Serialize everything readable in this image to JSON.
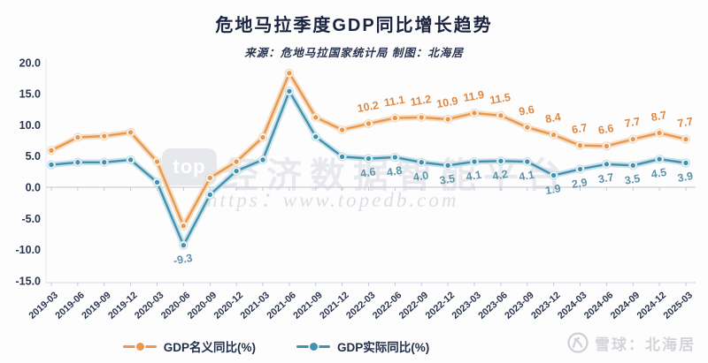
{
  "header": {
    "title": "危地马拉季度GDP同比增长趋势",
    "subtitle": "来源：危地马拉国家统计局 制图：北海居"
  },
  "watermark": {
    "badge": "top",
    "text": "经济数据智能平台",
    "url": "https：www.topedb.com"
  },
  "footer": {
    "brand": "雪球：北海居"
  },
  "colors": {
    "axis_text": "#2c3650",
    "zero_line": "#c9cfd9",
    "bottom_line": "#d9dde3",
    "left_line": "#e3e6eb",
    "tick": "#c2c9d3"
  },
  "chart_data": {
    "type": "line",
    "title": "危地马拉季度GDP同比增长趋势",
    "xlabel": "",
    "ylabel": "",
    "ylim": [
      -15,
      20
    ],
    "grid": "zero-line only",
    "legend_position": "bottom-center",
    "yticks": [
      "20.0",
      "15.0",
      "10.0",
      "5.0",
      "0.0",
      "-5.0",
      "-10.0",
      "-15.0"
    ],
    "categories": [
      "2019-03",
      "2019-06",
      "2019-09",
      "2019-12",
      "2020-03",
      "2020-06",
      "2020-09",
      "2020-12",
      "2021-03",
      "2021-06",
      "2021-09",
      "2021-12",
      "2022-03",
      "2022-06",
      "2022-09",
      "2022-12",
      "2023-03",
      "2023-06",
      "2023-09",
      "2023-12",
      "2024-03",
      "2024-06",
      "2024-09",
      "2024-12",
      "2025-03"
    ],
    "series": [
      {
        "name": "GDP名义同比(%)",
        "color": "#e8994f",
        "halo": "#f4dabd",
        "label_color": "#e08840",
        "label_dy": -15,
        "values": [
          5.9,
          8.0,
          8.2,
          8.8,
          4.1,
          -6.2,
          1.5,
          4.1,
          8.0,
          18.3,
          11.2,
          9.2,
          10.2,
          11.1,
          11.2,
          10.9,
          11.9,
          11.5,
          9.6,
          8.4,
          6.7,
          6.6,
          7.7,
          8.7,
          7.7
        ],
        "labels": [
          null,
          null,
          null,
          null,
          null,
          null,
          null,
          null,
          null,
          null,
          null,
          null,
          "10.2",
          "11.1",
          "11.2",
          "10.9",
          "11.9",
          "11.5",
          "9.6",
          "8.4",
          "6.7",
          "6.6",
          "7.7",
          "8.7",
          "7.7"
        ]
      },
      {
        "name": "GDP实际同比(%)",
        "color": "#4292ae",
        "halo": "#c6dfe9",
        "label_color": "#5e93a8",
        "label_dy": 20,
        "values": [
          3.6,
          4.0,
          4.0,
          4.4,
          0.8,
          -9.3,
          -1.2,
          2.6,
          4.4,
          15.4,
          8.1,
          4.9,
          4.6,
          4.8,
          4.0,
          3.5,
          4.1,
          4.2,
          4.1,
          1.9,
          2.9,
          3.7,
          3.5,
          4.5,
          3.9
        ],
        "labels": [
          null,
          null,
          null,
          null,
          null,
          "-9.3",
          null,
          null,
          null,
          null,
          null,
          null,
          "4.6",
          "4.8",
          "4.0",
          "3.5",
          "4.1",
          "4.2",
          "4.1",
          "1.9",
          "2.9",
          "3.7",
          "3.5",
          "4.5",
          "3.9"
        ]
      }
    ]
  }
}
